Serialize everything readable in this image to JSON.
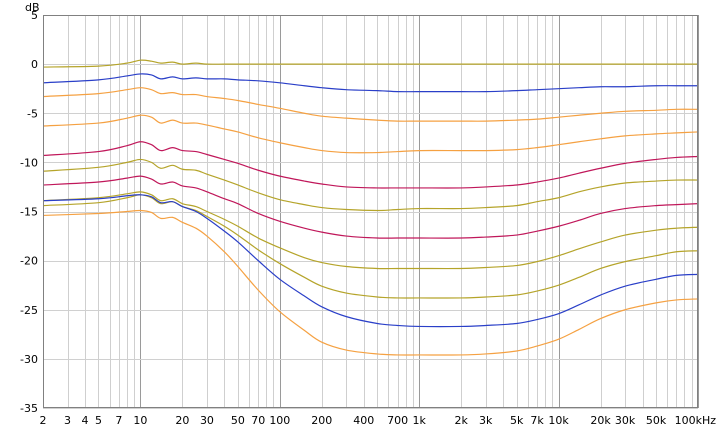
{
  "chart_data": {
    "type": "line",
    "title": "",
    "xlabel": "",
    "ylabel": "dB",
    "x_scale": "log",
    "xlim": [
      2,
      100000
    ],
    "ylim": [
      -35,
      5
    ],
    "grid": true,
    "legend": "none",
    "x_ticks": [
      {
        "value": 2,
        "label": "2"
      },
      {
        "value": 3,
        "label": "3"
      },
      {
        "value": 4,
        "label": "4"
      },
      {
        "value": 5,
        "label": "5"
      },
      {
        "value": 7,
        "label": "7"
      },
      {
        "value": 10,
        "label": "10"
      },
      {
        "value": 20,
        "label": "20"
      },
      {
        "value": 30,
        "label": "30"
      },
      {
        "value": 50,
        "label": "50"
      },
      {
        "value": 70,
        "label": "70"
      },
      {
        "value": 100,
        "label": "100"
      },
      {
        "value": 200,
        "label": "200"
      },
      {
        "value": 400,
        "label": "400"
      },
      {
        "value": 700,
        "label": "700"
      },
      {
        "value": 1000,
        "label": "1k"
      },
      {
        "value": 2000,
        "label": "2k"
      },
      {
        "value": 3000,
        "label": "3k"
      },
      {
        "value": 5000,
        "label": "5k"
      },
      {
        "value": 7000,
        "label": "7k"
      },
      {
        "value": 10000,
        "label": "10k"
      },
      {
        "value": 20000,
        "label": "20k"
      },
      {
        "value": 30000,
        "label": "30k"
      },
      {
        "value": 50000,
        "label": "50k"
      },
      {
        "value": 100000,
        "label": "100kHz"
      }
    ],
    "y_ticks": [
      5,
      0,
      -5,
      -10,
      -15,
      -20,
      -25,
      -30,
      -35
    ],
    "x": [
      2,
      5,
      8,
      10,
      12,
      14,
      17,
      20,
      25,
      30,
      40,
      50,
      70,
      100,
      150,
      200,
      300,
      500,
      700,
      1000,
      2000,
      3000,
      5000,
      7000,
      10000,
      14000,
      20000,
      30000,
      50000,
      70000,
      100000
    ],
    "series": [
      {
        "color": "#b5a42a",
        "values": [
          -0.3,
          -0.2,
          0.1,
          0.4,
          0.3,
          0.1,
          0.2,
          0.0,
          0.1,
          0.0,
          0.0,
          0.0,
          0.0,
          0.0,
          0.0,
          0.0,
          0.0,
          0.0,
          0.0,
          0.0,
          0.0,
          0.0,
          0.0,
          0.0,
          0.0,
          0.0,
          0.0,
          0.0,
          0.0,
          0.0,
          0.0
        ]
      },
      {
        "color": "#2a3fc8",
        "values": [
          -1.9,
          -1.6,
          -1.2,
          -1.0,
          -1.1,
          -1.5,
          -1.3,
          -1.5,
          -1.4,
          -1.5,
          -1.5,
          -1.6,
          -1.7,
          -1.9,
          -2.2,
          -2.4,
          -2.6,
          -2.7,
          -2.8,
          -2.8,
          -2.8,
          -2.8,
          -2.7,
          -2.6,
          -2.5,
          -2.4,
          -2.3,
          -2.3,
          -2.2,
          -2.2,
          -2.2
        ]
      },
      {
        "color": "#f5a142",
        "values": [
          -3.3,
          -3.0,
          -2.6,
          -2.4,
          -2.6,
          -3.0,
          -2.9,
          -3.1,
          -3.1,
          -3.3,
          -3.5,
          -3.7,
          -4.1,
          -4.5,
          -5.0,
          -5.3,
          -5.5,
          -5.7,
          -5.8,
          -5.8,
          -5.8,
          -5.8,
          -5.7,
          -5.6,
          -5.4,
          -5.2,
          -5.0,
          -4.8,
          -4.7,
          -4.6,
          -4.6
        ]
      },
      {
        "color": "#f5a142",
        "values": [
          -6.3,
          -6.0,
          -5.5,
          -5.2,
          -5.4,
          -6.0,
          -5.7,
          -6.0,
          -6.0,
          -6.2,
          -6.6,
          -6.9,
          -7.5,
          -8.0,
          -8.5,
          -8.8,
          -9.0,
          -9.0,
          -8.9,
          -8.8,
          -8.8,
          -8.8,
          -8.7,
          -8.5,
          -8.2,
          -7.9,
          -7.6,
          -7.3,
          -7.1,
          -7.0,
          -6.9
        ]
      },
      {
        "color": "#c0175a",
        "values": [
          -9.3,
          -8.9,
          -8.3,
          -7.9,
          -8.2,
          -8.8,
          -8.5,
          -8.8,
          -8.9,
          -9.2,
          -9.7,
          -10.1,
          -10.8,
          -11.4,
          -11.9,
          -12.2,
          -12.5,
          -12.6,
          -12.6,
          -12.6,
          -12.6,
          -12.5,
          -12.3,
          -12.0,
          -11.6,
          -11.1,
          -10.6,
          -10.1,
          -9.7,
          -9.5,
          -9.4
        ]
      },
      {
        "color": "#b5a42a",
        "values": [
          -10.9,
          -10.5,
          -10.0,
          -9.7,
          -10.0,
          -10.6,
          -10.3,
          -10.7,
          -10.8,
          -11.2,
          -11.8,
          -12.3,
          -13.1,
          -13.8,
          -14.3,
          -14.6,
          -14.8,
          -14.9,
          -14.8,
          -14.7,
          -14.7,
          -14.6,
          -14.4,
          -14.0,
          -13.6,
          -13.0,
          -12.5,
          -12.1,
          -11.9,
          -11.8,
          -11.8
        ]
      },
      {
        "color": "#c0175a",
        "values": [
          -12.3,
          -12.0,
          -11.6,
          -11.4,
          -11.7,
          -12.2,
          -12.0,
          -12.4,
          -12.6,
          -13.0,
          -13.7,
          -14.2,
          -15.2,
          -16.0,
          -16.7,
          -17.1,
          -17.5,
          -17.7,
          -17.7,
          -17.7,
          -17.7,
          -17.6,
          -17.4,
          -17.0,
          -16.5,
          -15.9,
          -15.2,
          -14.7,
          -14.4,
          -14.3,
          -14.2
        ]
      },
      {
        "color": "#b5a42a",
        "values": [
          -13.9,
          -13.6,
          -13.2,
          -13.0,
          -13.3,
          -13.9,
          -13.7,
          -14.2,
          -14.5,
          -15.0,
          -15.8,
          -16.5,
          -17.7,
          -18.7,
          -19.7,
          -20.2,
          -20.6,
          -20.8,
          -20.8,
          -20.8,
          -20.8,
          -20.7,
          -20.5,
          -20.1,
          -19.5,
          -18.8,
          -18.1,
          -17.4,
          -16.9,
          -16.7,
          -16.6
        ]
      },
      {
        "color": "#b5a42a",
        "values": [
          -14.4,
          -14.1,
          -13.6,
          -13.3,
          -13.6,
          -14.2,
          -14.0,
          -14.5,
          -14.9,
          -15.5,
          -16.5,
          -17.4,
          -18.9,
          -20.3,
          -21.7,
          -22.6,
          -23.3,
          -23.7,
          -23.8,
          -23.8,
          -23.8,
          -23.7,
          -23.5,
          -23.1,
          -22.5,
          -21.7,
          -20.8,
          -20.1,
          -19.5,
          -19.1,
          -19.0
        ]
      },
      {
        "color": "#2a3fc8",
        "values": [
          -13.9,
          -13.7,
          -13.4,
          -13.3,
          -13.5,
          -14.1,
          -14.0,
          -14.5,
          -15.0,
          -15.7,
          -17.0,
          -18.1,
          -20.0,
          -21.9,
          -23.6,
          -24.7,
          -25.7,
          -26.4,
          -26.6,
          -26.7,
          -26.7,
          -26.6,
          -26.4,
          -26.0,
          -25.4,
          -24.5,
          -23.5,
          -22.6,
          -21.9,
          -21.5,
          -21.4
        ]
      },
      {
        "color": "#f5a142",
        "values": [
          -15.4,
          -15.2,
          -15.0,
          -14.9,
          -15.1,
          -15.7,
          -15.6,
          -16.1,
          -16.7,
          -17.5,
          -19.1,
          -20.6,
          -23.0,
          -25.2,
          -27.1,
          -28.3,
          -29.1,
          -29.5,
          -29.6,
          -29.6,
          -29.6,
          -29.5,
          -29.2,
          -28.7,
          -28.0,
          -27.0,
          -25.9,
          -25.0,
          -24.3,
          -24.0,
          -23.9
        ]
      }
    ]
  }
}
